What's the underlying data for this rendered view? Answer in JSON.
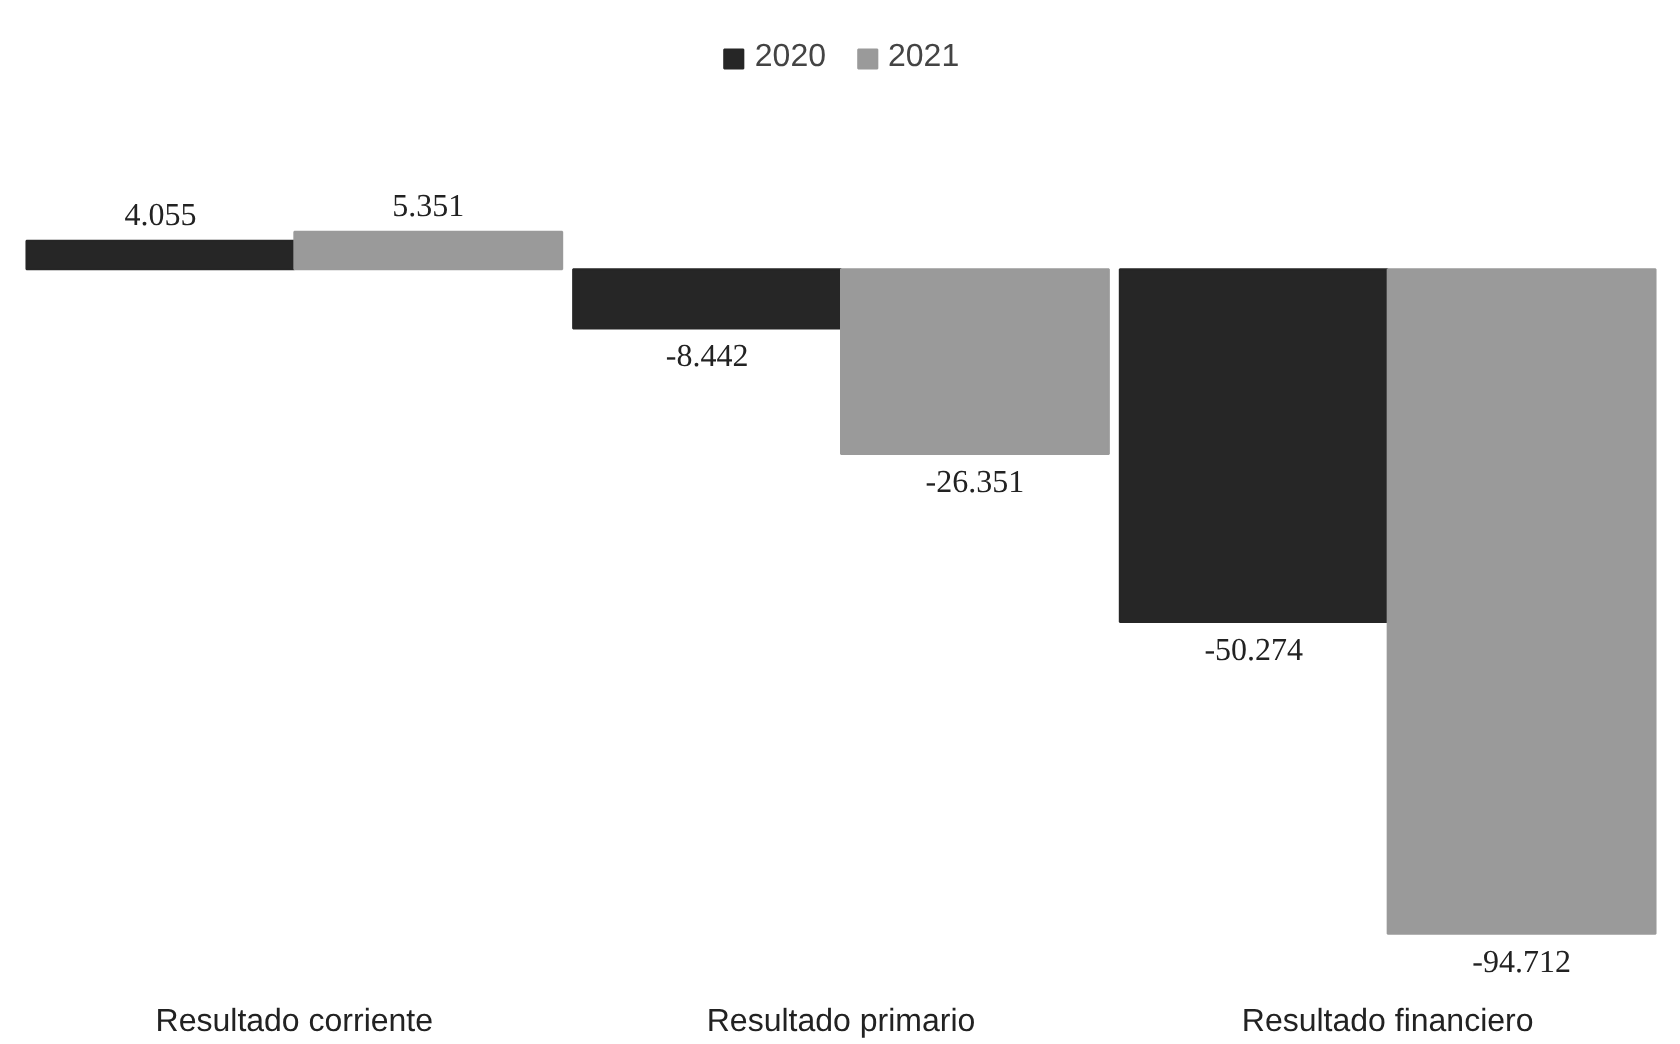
{
  "chart_data": {
    "type": "bar",
    "categories": [
      "Resultado corriente",
      "Resultado primario",
      "Resultado financiero"
    ],
    "series": [
      {
        "name": "2020",
        "color": "#262626",
        "values": [
          4055,
          -8442,
          -50274
        ],
        "value_labels": [
          "4.055",
          "-8.442",
          "-50.274"
        ]
      },
      {
        "name": "2021",
        "color": "#9a9a9a",
        "values": [
          5351,
          -26351,
          -94712
        ],
        "value_labels": [
          "5.351",
          "-26.351",
          "-94.712"
        ]
      }
    ],
    "grid": false,
    "legend": "top",
    "tick_labels": "x"
  }
}
